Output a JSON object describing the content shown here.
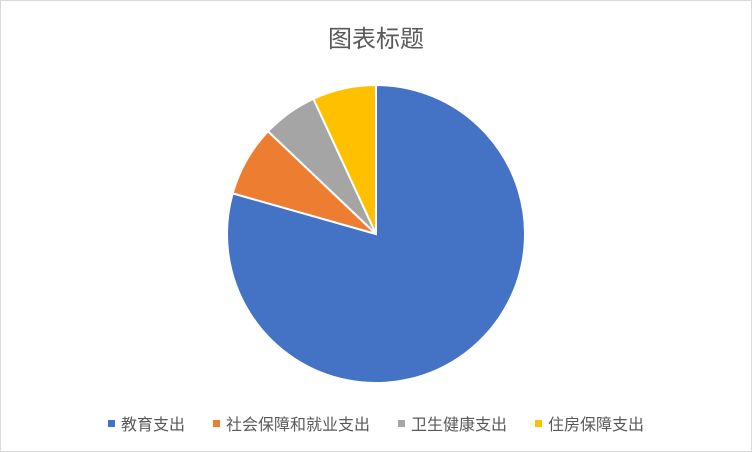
{
  "chart_data": {
    "type": "pie",
    "title": "图表标题",
    "categories": [
      "教育支出",
      "社会保障和就业支出",
      "卫生健康支出",
      "住房保障支出"
    ],
    "values": [
      79.4,
      7.7,
      6.0,
      6.9
    ],
    "colors": [
      "#4472C4",
      "#ED7D31",
      "#A5A5A5",
      "#FFC000"
    ],
    "start_angle": "top",
    "direction": "clockwise",
    "legend_position": "bottom"
  }
}
